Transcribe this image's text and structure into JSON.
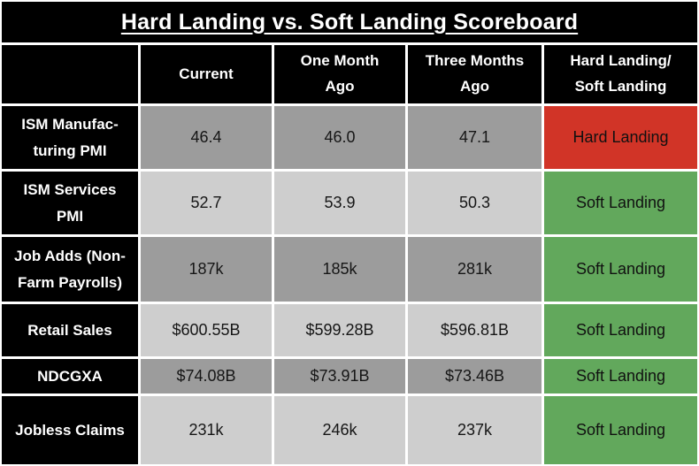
{
  "title": "Hard Landing vs. Soft Landing Scoreboard",
  "table": {
    "columns": [
      {
        "key": "blank",
        "label": ""
      },
      {
        "key": "current",
        "label": "Current"
      },
      {
        "key": "one-month-ago",
        "label": "One Month\nAgo"
      },
      {
        "key": "three-months-ago",
        "label": "Three Months\nAgo"
      },
      {
        "key": "verdict",
        "label": "Hard Landing/\nSoft Landing"
      }
    ],
    "rows": [
      {
        "label": "ISM Manufac-\nturing PMI",
        "current": "46.4",
        "one_month_ago": "46.0",
        "three_months_ago": "47.1",
        "verdict": "Hard Landing",
        "verdict_type": "hard",
        "shade": "dark"
      },
      {
        "label": "ISM Services\nPMI",
        "current": "52.7",
        "one_month_ago": "53.9",
        "three_months_ago": "50.3",
        "verdict": "Soft Landing",
        "verdict_type": "soft",
        "shade": "light"
      },
      {
        "label": "Job Adds (Non-\nFarm Payrolls)",
        "current": "187k",
        "one_month_ago": "185k",
        "three_months_ago": "281k",
        "verdict": "Soft Landing",
        "verdict_type": "soft",
        "shade": "dark"
      },
      {
        "label": "Retail Sales",
        "current": "$600.55B",
        "one_month_ago": "$599.28B",
        "three_months_ago": "$596.81B",
        "verdict": "Soft Landing",
        "verdict_type": "soft",
        "shade": "light"
      },
      {
        "label": "NDCGXA",
        "current": "$74.08B",
        "one_month_ago": "$73.91B",
        "three_months_ago": "$73.46B",
        "verdict": "Soft Landing",
        "verdict_type": "soft",
        "shade": "dark"
      },
      {
        "label": "Jobless Claims",
        "current": "231k",
        "one_month_ago": "246k",
        "three_months_ago": "237k",
        "verdict": "Soft Landing",
        "verdict_type": "soft",
        "shade": "light"
      }
    ]
  },
  "colors": {
    "hard_landing": "#d13427",
    "soft_landing": "#62a85c",
    "row_dark": "#9c9c9c",
    "row_light": "#cecece",
    "header_bg": "#000000",
    "header_text": "#ffffff",
    "gridline": "#ffffff"
  },
  "chart_data": {
    "type": "table",
    "title": "Hard Landing vs. Soft Landing Scoreboard",
    "columns": [
      "",
      "Current",
      "One Month Ago",
      "Three Months Ago",
      "Hard Landing/Soft Landing"
    ],
    "rows": [
      [
        "ISM Manufacturing PMI",
        "46.4",
        "46.0",
        "47.1",
        "Hard Landing"
      ],
      [
        "ISM Services PMI",
        "52.7",
        "53.9",
        "50.3",
        "Soft Landing"
      ],
      [
        "Job Adds (Non-Farm Payrolls)",
        "187k",
        "185k",
        "281k",
        "Soft Landing"
      ],
      [
        "Retail Sales",
        "$600.55B",
        "$599.28B",
        "$596.81B",
        "Soft Landing"
      ],
      [
        "NDCGXA",
        "$74.08B",
        "$73.91B",
        "$73.46B",
        "Soft Landing"
      ],
      [
        "Jobless Claims",
        "231k",
        "246k",
        "237k",
        "Soft Landing"
      ]
    ],
    "cell_colors": {
      "Hard Landing": "#d13427",
      "Soft Landing": "#62a85c"
    },
    "row_shading": [
      "dark",
      "light",
      "dark",
      "light",
      "dark",
      "light"
    ]
  }
}
